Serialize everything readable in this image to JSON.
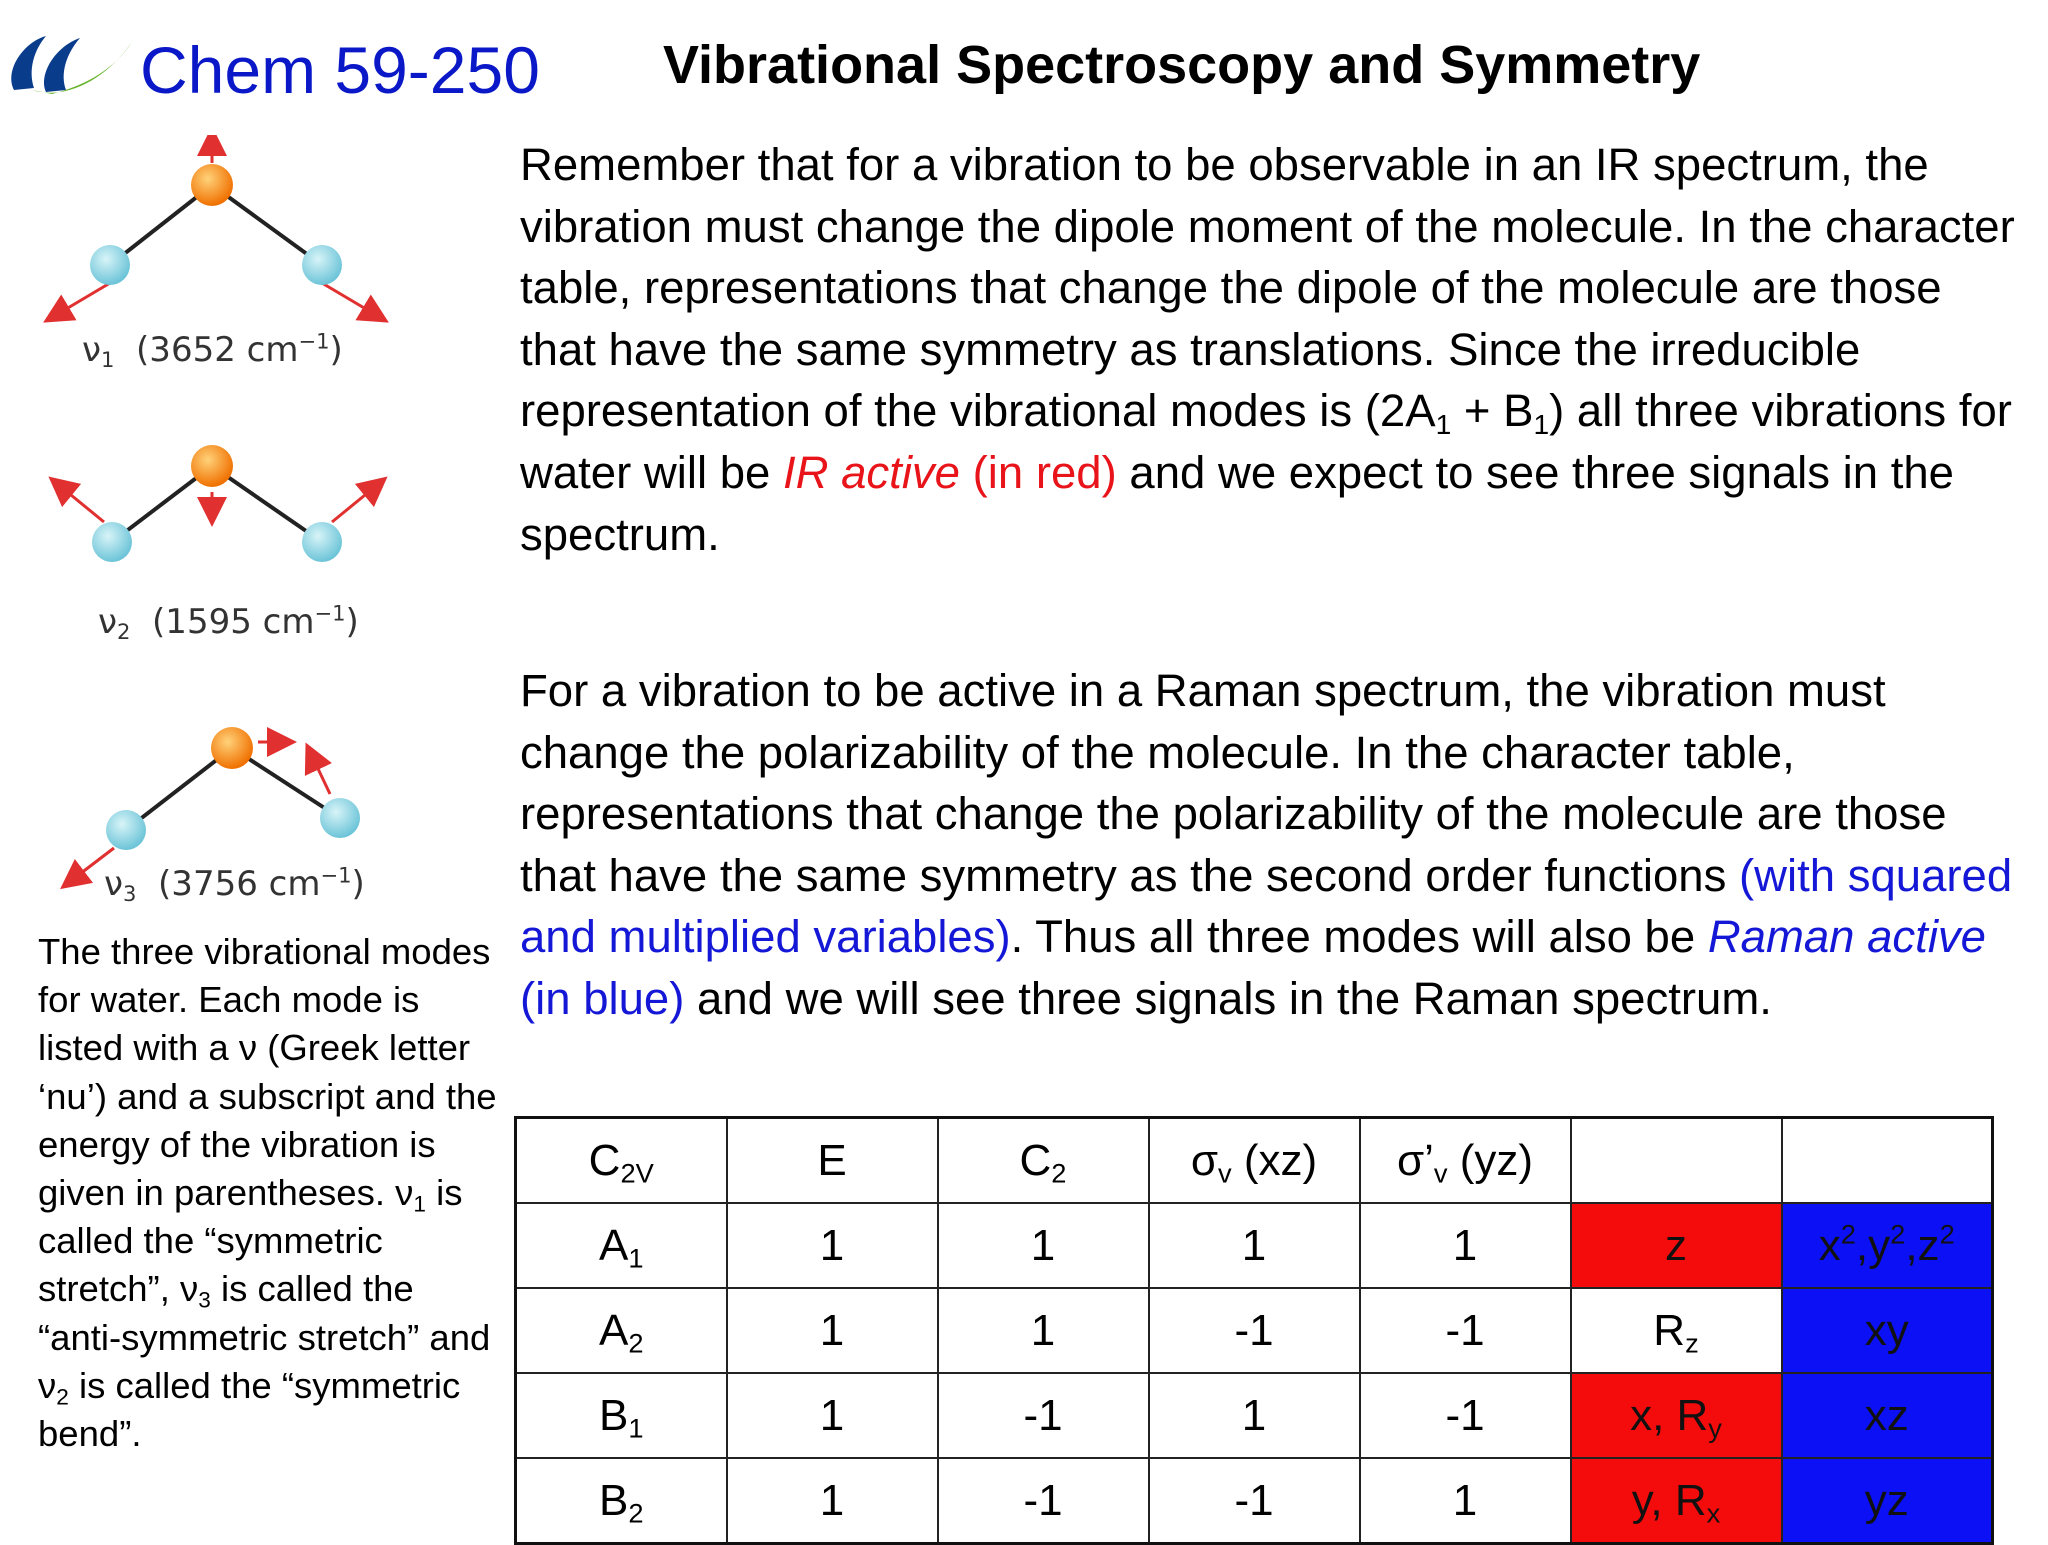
{
  "header": {
    "course": "Chem 59-250",
    "title": "Vibrational Spectroscopy and Symmetry"
  },
  "colors": {
    "ir_red": "#e8141a",
    "raman_blue": "#1418d6",
    "logo_blue": "#0a3c8c",
    "logo_green": "#6ab42d",
    "oxygen_orange": "#f47f10",
    "hydrogen_cyan": "#7ecfe0",
    "arrow_red": "#e03030"
  },
  "modes": [
    {
      "nu": "ν",
      "sub": "1",
      "energy": "(3652 cm",
      "exp": "−1",
      "close": ")"
    },
    {
      "nu": "ν",
      "sub": "2",
      "energy": "(1595 cm",
      "exp": "−1",
      "close": ")"
    },
    {
      "nu": "ν",
      "sub": "3",
      "energy": "(3756 cm",
      "exp": "−1",
      "close": ")"
    }
  ],
  "para1": {
    "t1": "Remember that for a vibration to be observable in an IR spectrum, the vibration must change the dipole moment of the molecule. In the character table, representations that change the dipole of the molecule are those that have the same symmetry as translations.  Since the irreducible representation of the vibrational modes is (2A",
    "s1": "1",
    "t2": " + B",
    "s2": "1",
    "t3": ") all three vibrations for water will be ",
    "red_italic": "IR active",
    "red_plain": " (in red)",
    "t4": " and we expect to see three signals in the spectrum."
  },
  "para2": {
    "t1": "For a vibration to be active in a Raman spectrum, the vibration must change the polarizability of the molecule. In the character table, representations that change the polarizability of the molecule are those that have the same symmetry as the second order functions ",
    "blue1": "(with squared and multiplied variables)",
    "t2": ".  Thus all three modes will also be ",
    "blue_italic": "Raman active",
    "blue_plain": " (in blue)",
    "t3": " and we will see three signals in the Raman spectrum."
  },
  "caption": {
    "t1": "The three vibrational modes for water.  Each mode is listed with a ",
    "nu": "ν",
    "t2": " (Greek letter ‘nu’) and a subscript and the energy of the vibration is given in parentheses. ",
    "nu1": "ν",
    "s1": "1",
    "t3": " is called the “symmetric stretch”, ",
    "nu3": "ν",
    "s3": "3",
    "t4": " is called the “anti-symmetric stretch” and ",
    "nu2": "ν",
    "s2": "2",
    "t5": " is called the “symmetric bend”."
  },
  "table": {
    "header": {
      "group": "C",
      "group_sub": "2V",
      "E": "E",
      "C2": "C",
      "C2_sub": "2",
      "sv": "σ",
      "sv_sub": "v",
      "sv_rest": " (xz)",
      "sv2": "σ’",
      "sv2_sub": "v",
      "sv2_rest": " (yz)"
    },
    "rows": [
      {
        "label": "A",
        "sub": "1",
        "chars": [
          "1",
          "1",
          "1",
          "1"
        ],
        "linear": "z",
        "quad": "x<sup>2</sup>,y<sup>2</sup>,z<sup>2</sup>",
        "linear_red": true
      },
      {
        "label": "A",
        "sub": "2",
        "chars": [
          "1",
          "1",
          "-1",
          "-1"
        ],
        "linear": "R<sub>z</sub>",
        "quad": "xy",
        "linear_red": false
      },
      {
        "label": "B",
        "sub": "1",
        "chars": [
          "1",
          "-1",
          "1",
          "-1"
        ],
        "linear": "x, R<sub>y</sub>",
        "quad": "xz",
        "linear_red": true
      },
      {
        "label": "B",
        "sub": "2",
        "chars": [
          "1",
          "-1",
          "-1",
          "1"
        ],
        "linear": "y, R<sub>x</sub>",
        "quad": "yz",
        "linear_red": true
      }
    ]
  }
}
